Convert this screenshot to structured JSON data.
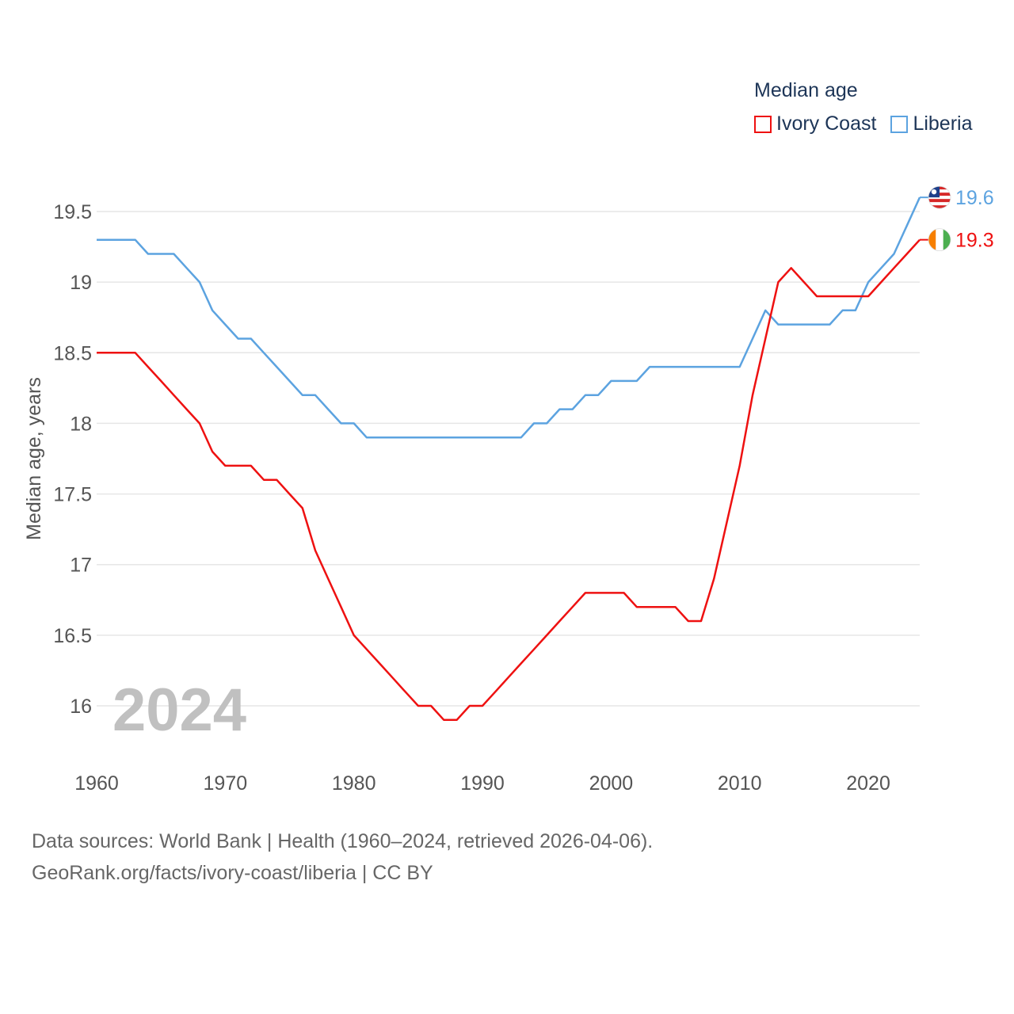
{
  "legend": {
    "title": "Median age",
    "items": [
      {
        "label": "Ivory Coast",
        "color": "#ee1111"
      },
      {
        "label": "Liberia",
        "color": "#5ca3e0"
      }
    ]
  },
  "year_watermark": "2024",
  "footer": {
    "line1": "Data sources: World Bank | Health (1960–2024, retrieved 2026-04-06).",
    "line2": "GeoRank.org/facts/ivory-coast/liberia | CC BY"
  },
  "chart_data": {
    "type": "line",
    "title": "Median age",
    "xlabel": "",
    "ylabel": "Median age, years",
    "xlim": [
      1960,
      2024
    ],
    "ylim": [
      15.7,
      19.8
    ],
    "yticks": [
      16,
      16.5,
      17,
      17.5,
      18,
      18.5,
      19,
      19.5
    ],
    "ytick_labels": [
      "16",
      "16.5",
      "17",
      "17.5",
      "18",
      "18.5",
      "19",
      "19.5"
    ],
    "xticks": [
      1960,
      1970,
      1980,
      1990,
      2000,
      2010,
      2020
    ],
    "xtick_labels": [
      "1960",
      "1970",
      "1980",
      "1990",
      "2000",
      "2010",
      "2020"
    ],
    "grid": true,
    "legend_position": "top-right",
    "series": [
      {
        "name": "Ivory Coast",
        "color": "#ee1111",
        "end_label": "19.3",
        "x": [
          1960,
          1961,
          1962,
          1963,
          1964,
          1965,
          1966,
          1967,
          1968,
          1969,
          1970,
          1971,
          1972,
          1973,
          1974,
          1975,
          1976,
          1977,
          1978,
          1979,
          1980,
          1981,
          1982,
          1983,
          1984,
          1985,
          1986,
          1987,
          1988,
          1989,
          1990,
          1991,
          1992,
          1993,
          1994,
          1995,
          1996,
          1997,
          1998,
          1999,
          2000,
          2001,
          2002,
          2003,
          2004,
          2005,
          2006,
          2007,
          2008,
          2009,
          2010,
          2011,
          2012,
          2013,
          2014,
          2015,
          2016,
          2017,
          2018,
          2019,
          2020,
          2021,
          2022,
          2023,
          2024
        ],
        "values": [
          18.5,
          18.5,
          18.5,
          18.5,
          18.4,
          18.3,
          18.2,
          18.1,
          18.0,
          17.8,
          17.7,
          17.7,
          17.7,
          17.6,
          17.6,
          17.5,
          17.4,
          17.1,
          16.9,
          16.7,
          16.5,
          16.4,
          16.3,
          16.2,
          16.1,
          16.0,
          16.0,
          15.9,
          15.9,
          16.0,
          16.0,
          16.1,
          16.2,
          16.3,
          16.4,
          16.5,
          16.6,
          16.7,
          16.8,
          16.8,
          16.8,
          16.8,
          16.7,
          16.7,
          16.7,
          16.7,
          16.6,
          16.6,
          16.9,
          17.3,
          17.7,
          18.2,
          18.6,
          19.0,
          19.1,
          19.0,
          18.9,
          18.9,
          18.9,
          18.9,
          18.9,
          19.0,
          19.1,
          19.2,
          19.3
        ]
      },
      {
        "name": "Liberia",
        "color": "#5ca3e0",
        "end_label": "19.6",
        "x": [
          1960,
          1961,
          1962,
          1963,
          1964,
          1965,
          1966,
          1967,
          1968,
          1969,
          1970,
          1971,
          1972,
          1973,
          1974,
          1975,
          1976,
          1977,
          1978,
          1979,
          1980,
          1981,
          1982,
          1983,
          1984,
          1985,
          1986,
          1987,
          1988,
          1989,
          1990,
          1991,
          1992,
          1993,
          1994,
          1995,
          1996,
          1997,
          1998,
          1999,
          2000,
          2001,
          2002,
          2003,
          2004,
          2005,
          2006,
          2007,
          2008,
          2009,
          2010,
          2011,
          2012,
          2013,
          2014,
          2015,
          2016,
          2017,
          2018,
          2019,
          2020,
          2021,
          2022,
          2023,
          2024
        ],
        "values": [
          19.3,
          19.3,
          19.3,
          19.3,
          19.2,
          19.2,
          19.2,
          19.1,
          19.0,
          18.8,
          18.7,
          18.6,
          18.6,
          18.5,
          18.4,
          18.3,
          18.2,
          18.2,
          18.1,
          18.0,
          18.0,
          17.9,
          17.9,
          17.9,
          17.9,
          17.9,
          17.9,
          17.9,
          17.9,
          17.9,
          17.9,
          17.9,
          17.9,
          17.9,
          18.0,
          18.0,
          18.1,
          18.1,
          18.2,
          18.2,
          18.3,
          18.3,
          18.3,
          18.4,
          18.4,
          18.4,
          18.4,
          18.4,
          18.4,
          18.4,
          18.4,
          18.6,
          18.8,
          18.7,
          18.7,
          18.7,
          18.7,
          18.7,
          18.8,
          18.8,
          19.0,
          19.1,
          19.2,
          19.4,
          19.6
        ]
      }
    ]
  }
}
